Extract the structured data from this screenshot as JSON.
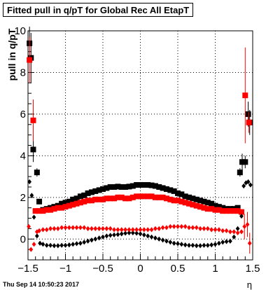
{
  "page": {
    "title": "Fitted pull in q/pT for Global Rec All EtapT",
    "ylabel": "pull in q/pT",
    "xlabel": "η",
    "datestamp": "Thu Sep 14 10:50:23 2017"
  },
  "chart_data": {
    "type": "scatter",
    "title": "Fitted pull in q/pT for Global Rec All EtapT",
    "xlabel": "η",
    "ylabel": "pull in q/pT",
    "xlim": [
      -1.5,
      1.5
    ],
    "ylim": [
      -1.0,
      10.0
    ],
    "xticks": [
      -1.5,
      -1,
      -0.5,
      0,
      0.5,
      1,
      1.5
    ],
    "xtick_labels": [
      "−1.5",
      "−1",
      "−0.5",
      "0",
      "0.5",
      "1",
      "1.5"
    ],
    "yticks": [
      0,
      2,
      4,
      6,
      8,
      10
    ],
    "ytick_labels": [
      "0",
      "2",
      "4",
      "6",
      "8",
      "10"
    ],
    "grid": true,
    "series": [
      {
        "marker": "square",
        "color": "#000000",
        "x": [
          -1.48,
          -1.46,
          -1.43,
          -1.38,
          -1.35,
          -1.3,
          -1.25,
          -1.2,
          -1.15,
          -1.1,
          -1.05,
          -1.0,
          -0.95,
          -0.9,
          -0.85,
          -0.8,
          -0.75,
          -0.7,
          -0.65,
          -0.6,
          -0.55,
          -0.5,
          -0.45,
          -0.4,
          -0.35,
          -0.3,
          -0.25,
          -0.2,
          -0.15,
          -0.1,
          -0.05,
          0.0,
          0.05,
          0.1,
          0.15,
          0.2,
          0.25,
          0.3,
          0.35,
          0.4,
          0.45,
          0.5,
          0.55,
          0.6,
          0.65,
          0.7,
          0.75,
          0.8,
          0.85,
          0.9,
          0.95,
          1.0,
          1.05,
          1.1,
          1.15,
          1.2,
          1.25,
          1.3,
          1.33,
          1.36,
          1.4,
          1.44,
          1.46
        ],
        "y": [
          9.4,
          8.7,
          4.3,
          3.2,
          1.8,
          1.4,
          1.45,
          1.5,
          1.55,
          1.6,
          1.7,
          1.75,
          1.8,
          1.9,
          1.95,
          2.05,
          2.1,
          2.2,
          2.25,
          2.3,
          2.35,
          2.4,
          2.45,
          2.5,
          2.5,
          2.52,
          2.5,
          2.5,
          2.52,
          2.55,
          2.6,
          2.6,
          2.6,
          2.6,
          2.58,
          2.55,
          2.5,
          2.45,
          2.4,
          2.35,
          2.3,
          2.2,
          2.15,
          2.05,
          2.0,
          1.95,
          1.9,
          1.85,
          1.8,
          1.75,
          1.7,
          1.6,
          1.55,
          1.5,
          1.45,
          1.45,
          1.45,
          1.5,
          3.2,
          3.7,
          3.7,
          6.0,
          5.6
        ],
        "yerr": [
          0.8,
          1.2,
          0.6,
          0.2,
          0,
          0,
          0,
          0,
          0,
          0,
          0,
          0,
          0,
          0,
          0,
          0,
          0,
          0,
          0,
          0,
          0,
          0,
          0,
          0,
          0,
          0,
          0,
          0,
          0,
          0,
          0,
          0,
          0,
          0,
          0,
          0,
          0,
          0,
          0,
          0,
          0,
          0,
          0,
          0,
          0,
          0,
          0,
          0,
          0,
          0,
          0,
          0,
          0,
          0,
          0,
          0,
          0,
          0,
          0.2,
          0.4,
          0.3,
          0.6,
          0.6
        ]
      },
      {
        "marker": "square",
        "color": "#ff0000",
        "x": [
          -1.48,
          -1.43,
          -1.4,
          -1.35,
          -1.3,
          -1.25,
          -1.2,
          -1.15,
          -1.1,
          -1.05,
          -1.0,
          -0.95,
          -0.9,
          -0.85,
          -0.8,
          -0.75,
          -0.7,
          -0.65,
          -0.6,
          -0.55,
          -0.5,
          -0.45,
          -0.4,
          -0.35,
          -0.3,
          -0.25,
          -0.2,
          -0.15,
          -0.1,
          -0.05,
          0.0,
          0.05,
          0.1,
          0.15,
          0.2,
          0.25,
          0.3,
          0.35,
          0.4,
          0.45,
          0.5,
          0.55,
          0.6,
          0.65,
          0.7,
          0.75,
          0.8,
          0.85,
          0.9,
          0.95,
          1.0,
          1.05,
          1.1,
          1.15,
          1.2,
          1.25,
          1.3,
          1.35,
          1.4,
          1.45
        ],
        "y": [
          8.6,
          5.7,
          1.35,
          1.35,
          1.35,
          1.4,
          1.4,
          1.45,
          1.5,
          1.5,
          1.55,
          1.6,
          1.65,
          1.7,
          1.75,
          1.8,
          1.85,
          1.85,
          1.9,
          1.9,
          1.9,
          1.95,
          1.95,
          1.95,
          2.0,
          2.0,
          1.95,
          1.95,
          2.0,
          2.05,
          2.05,
          2.05,
          2.05,
          2.05,
          2.0,
          2.0,
          2.0,
          1.95,
          1.9,
          1.85,
          1.85,
          1.8,
          1.75,
          1.7,
          1.65,
          1.6,
          1.55,
          1.5,
          1.45,
          1.45,
          1.4,
          1.4,
          1.35,
          1.35,
          1.35,
          1.35,
          1.35,
          1.3,
          6.9,
          5.6
        ],
        "yerr": [
          1.1,
          1.0,
          0,
          0,
          0,
          0,
          0,
          0,
          0,
          0,
          0,
          0,
          0,
          0,
          0,
          0,
          0,
          0,
          0,
          0,
          0,
          0,
          0,
          0,
          0,
          0,
          0,
          0,
          0,
          0,
          0,
          0,
          0,
          0,
          0,
          0,
          0,
          0,
          0,
          0,
          0,
          0,
          0,
          0,
          0,
          0,
          0,
          0,
          0,
          0,
          0,
          0,
          0,
          0,
          0,
          0,
          0,
          0,
          2.3,
          0.5
        ]
      },
      {
        "marker": "diamond",
        "color": "#000000",
        "x": [
          -1.48,
          -1.45,
          -1.42,
          -1.38,
          -1.34,
          -1.3,
          -1.25,
          -1.2,
          -1.15,
          -1.1,
          -1.05,
          -1.0,
          -0.95,
          -0.9,
          -0.85,
          -0.8,
          -0.75,
          -0.7,
          -0.65,
          -0.6,
          -0.55,
          -0.5,
          -0.45,
          -0.4,
          -0.35,
          -0.3,
          -0.25,
          -0.2,
          -0.15,
          -0.1,
          -0.05,
          0.0,
          0.05,
          0.1,
          0.15,
          0.2,
          0.25,
          0.3,
          0.35,
          0.4,
          0.45,
          0.5,
          0.55,
          0.6,
          0.65,
          0.7,
          0.75,
          0.8,
          0.85,
          0.9,
          0.95,
          1.0,
          1.05,
          1.1,
          1.15,
          1.2,
          1.25,
          1.3,
          1.35,
          1.38,
          1.41,
          1.44,
          1.47
        ],
        "y": [
          2.75,
          2.1,
          1.05,
          0.15,
          -0.2,
          -0.25,
          -0.3,
          -0.3,
          -0.32,
          -0.32,
          -0.3,
          -0.3,
          -0.28,
          -0.25,
          -0.22,
          -0.2,
          -0.15,
          -0.1,
          -0.05,
          0.0,
          0.05,
          0.1,
          0.15,
          0.18,
          0.2,
          0.22,
          0.25,
          0.28,
          0.3,
          0.3,
          0.28,
          0.25,
          0.2,
          0.15,
          0.1,
          0.05,
          0.0,
          -0.05,
          -0.1,
          -0.15,
          -0.2,
          -0.22,
          -0.25,
          -0.28,
          -0.3,
          -0.3,
          -0.32,
          -0.32,
          -0.3,
          -0.3,
          -0.28,
          -0.25,
          -0.2,
          -0.15,
          -0.12,
          -0.1,
          0.1,
          0.5,
          1.1,
          2.55,
          2.7,
          2.75,
          2.6
        ]
      },
      {
        "marker": "diamond",
        "color": "#ff0000",
        "x": [
          -1.49,
          -1.46,
          -1.42,
          -1.38,
          -1.35,
          -1.3,
          -1.25,
          -1.2,
          -1.15,
          -1.1,
          -1.05,
          -1.0,
          -0.95,
          -0.9,
          -0.85,
          -0.8,
          -0.75,
          -0.7,
          -0.65,
          -0.6,
          -0.55,
          -0.5,
          -0.45,
          -0.4,
          -0.35,
          -0.3,
          -0.25,
          -0.2,
          -0.15,
          -0.1,
          -0.05,
          0.0,
          0.05,
          0.1,
          0.15,
          0.2,
          0.25,
          0.3,
          0.35,
          0.4,
          0.45,
          0.5,
          0.55,
          0.6,
          0.65,
          0.7,
          0.75,
          0.8,
          0.85,
          0.9,
          0.95,
          1.0,
          1.05,
          1.1,
          1.15,
          1.2,
          1.25,
          1.3,
          1.35,
          1.39,
          1.43,
          1.46
        ],
        "y": [
          0.6,
          -0.5,
          -0.25,
          0.35,
          0.4,
          0.45,
          0.45,
          0.5,
          0.5,
          0.5,
          0.55,
          0.55,
          0.55,
          0.55,
          0.55,
          0.55,
          0.55,
          0.5,
          0.5,
          0.5,
          0.5,
          0.5,
          0.5,
          0.5,
          0.45,
          0.45,
          0.45,
          0.45,
          0.45,
          0.45,
          0.45,
          0.45,
          0.45,
          0.45,
          0.45,
          0.5,
          0.5,
          0.55,
          0.55,
          0.6,
          0.6,
          0.6,
          0.6,
          0.6,
          0.55,
          0.55,
          0.55,
          0.5,
          0.5,
          0.5,
          0.45,
          0.45,
          0.45,
          0.4,
          0.4,
          0.35,
          0.35,
          0.3,
          0.35,
          0.6,
          0.7,
          -0.2
        ],
        "yerr": [
          0,
          0,
          0,
          0,
          0,
          0,
          0,
          0,
          0,
          0,
          0,
          0,
          0,
          0,
          0,
          0,
          0,
          0,
          0,
          0,
          0,
          0,
          0,
          0,
          0,
          0,
          0,
          0,
          0,
          0,
          0,
          0,
          0,
          0,
          0,
          0,
          0,
          0,
          0,
          0,
          0,
          0,
          0,
          0,
          0,
          0,
          0,
          0,
          0,
          0,
          0,
          0,
          0,
          0,
          0,
          0,
          0,
          0,
          0,
          0.6,
          0.6,
          0.5
        ]
      }
    ]
  }
}
